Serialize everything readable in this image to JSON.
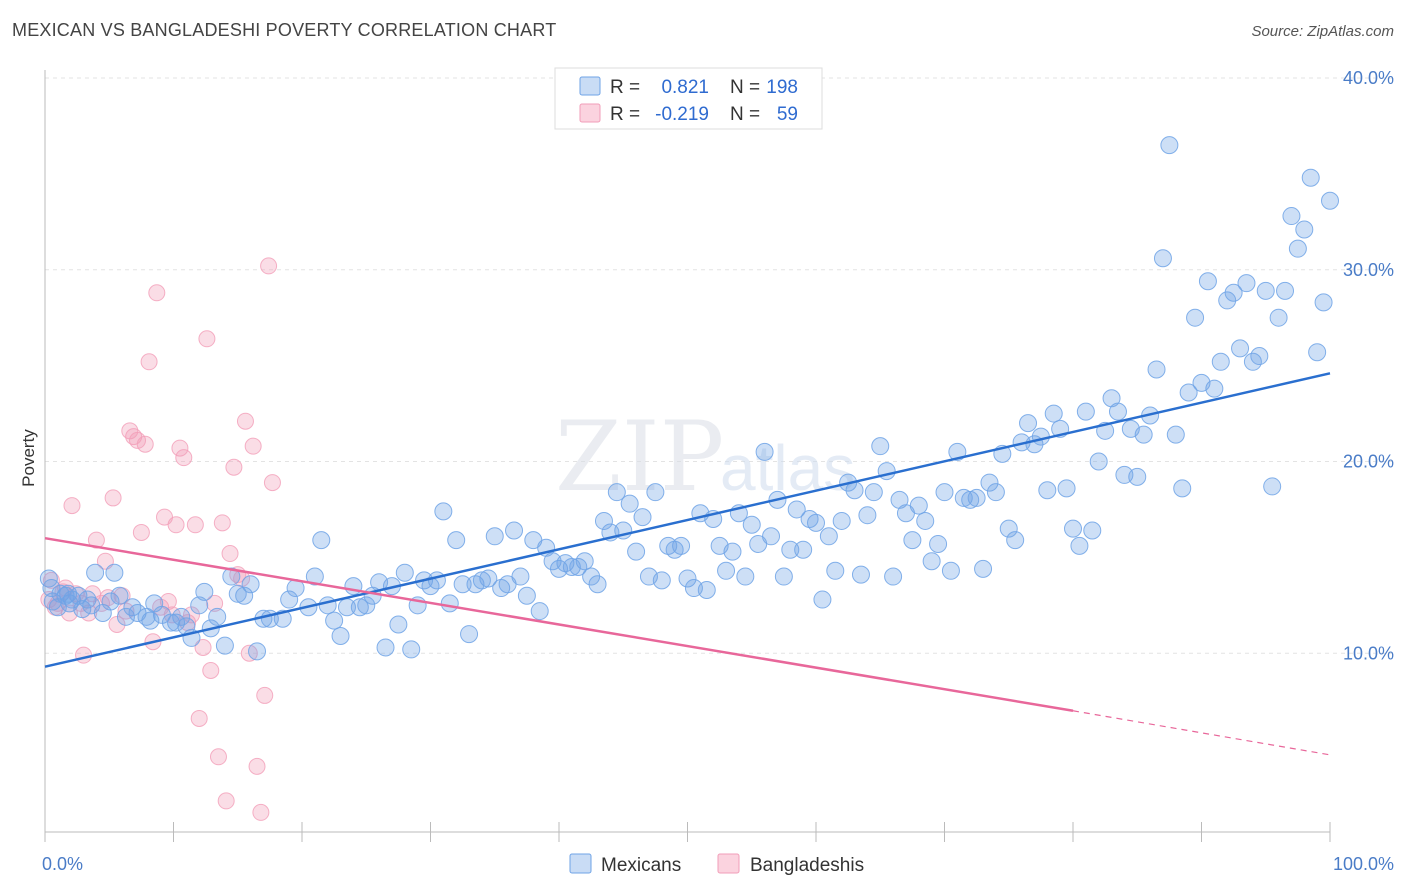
{
  "header": {
    "title": "MEXICAN VS BANGLADESHI POVERTY CORRELATION CHART",
    "source": "Source: ZipAtlas.com"
  },
  "legend": {
    "r_label": "R =",
    "n_label": "N =",
    "rows": [
      {
        "r": "0.821",
        "n": "198",
        "color": "#6fa3e6"
      },
      {
        "r": "-0.219",
        "n": "59",
        "color": "#f29db8"
      }
    ]
  },
  "watermark": {
    "zip": "ZIP",
    "atlas": "atlas"
  },
  "bottom_legend": [
    {
      "label": "Mexicans",
      "color": "#6fa3e6"
    },
    {
      "label": "Bangladeshis",
      "color": "#f29db8"
    }
  ],
  "chart_data": {
    "type": "scatter",
    "title": "MEXICAN VS BANGLADESHI POVERTY CORRELATION CHART",
    "xlabel": "",
    "ylabel": "Poverty",
    "xlim": [
      0,
      100
    ],
    "ylim": [
      0,
      40
    ],
    "x_tick_labels": [
      "0.0%",
      "100.0%"
    ],
    "y_ticks": [
      10,
      20,
      30,
      40
    ],
    "y_tick_labels": [
      "10.0%",
      "20.0%",
      "30.0%",
      "40.0%"
    ],
    "grid": true,
    "legend_position": "top-center",
    "series": [
      {
        "name": "Mexicans",
        "color": "#6fa3e6",
        "line_color": "#2a6fcf",
        "r": 0.821,
        "n": 198,
        "trend": {
          "x0": 0,
          "y0": 9.3,
          "x1": 100,
          "y1": 24.6
        },
        "points": [
          [
            0.3,
            13.9
          ],
          [
            0.5,
            13.4
          ],
          [
            0.6,
            12.7
          ],
          [
            1.0,
            12.4
          ],
          [
            1.2,
            13.1
          ],
          [
            1.6,
            13.0
          ],
          [
            1.9,
            12.6
          ],
          [
            2.1,
            12.8
          ],
          [
            2.6,
            13.0
          ],
          [
            2.9,
            12.3
          ],
          [
            3.3,
            12.8
          ],
          [
            3.6,
            12.5
          ],
          [
            3.9,
            14.2
          ],
          [
            4.5,
            12.1
          ],
          [
            5.1,
            12.7
          ],
          [
            5.4,
            14.2
          ],
          [
            5.8,
            13.0
          ],
          [
            6.3,
            11.9
          ],
          [
            6.8,
            12.4
          ],
          [
            7.2,
            12.1
          ],
          [
            7.9,
            11.9
          ],
          [
            8.2,
            11.7
          ],
          [
            8.5,
            12.6
          ],
          [
            9.1,
            12.0
          ],
          [
            9.8,
            11.6
          ],
          [
            10.2,
            11.6
          ],
          [
            10.6,
            11.9
          ],
          [
            11.0,
            11.4
          ],
          [
            11.4,
            10.8
          ],
          [
            12.0,
            12.5
          ],
          [
            12.4,
            13.2
          ],
          [
            12.9,
            11.3
          ],
          [
            13.4,
            11.9
          ],
          [
            14.0,
            10.4
          ],
          [
            14.5,
            14.0
          ],
          [
            15.0,
            13.1
          ],
          [
            15.5,
            13.0
          ],
          [
            16.0,
            13.6
          ],
          [
            16.5,
            10.1
          ],
          [
            17.0,
            11.8
          ],
          [
            17.5,
            11.8
          ],
          [
            18.5,
            11.8
          ],
          [
            19.0,
            12.8
          ],
          [
            19.5,
            13.4
          ],
          [
            20.5,
            12.4
          ],
          [
            21.0,
            14.0
          ],
          [
            21.5,
            15.9
          ],
          [
            22.0,
            12.5
          ],
          [
            22.5,
            11.7
          ],
          [
            23.0,
            10.9
          ],
          [
            23.5,
            12.4
          ],
          [
            24.0,
            13.5
          ],
          [
            24.5,
            12.4
          ],
          [
            25.0,
            12.5
          ],
          [
            25.5,
            13.0
          ],
          [
            26.0,
            13.7
          ],
          [
            26.5,
            10.3
          ],
          [
            27.0,
            13.5
          ],
          [
            27.5,
            11.5
          ],
          [
            28.0,
            14.2
          ],
          [
            28.5,
            10.2
          ],
          [
            29.0,
            12.5
          ],
          [
            29.5,
            13.8
          ],
          [
            30.0,
            13.5
          ],
          [
            30.5,
            13.8
          ],
          [
            31.0,
            17.4
          ],
          [
            31.5,
            12.6
          ],
          [
            32.0,
            15.9
          ],
          [
            32.5,
            13.6
          ],
          [
            33.0,
            11.0
          ],
          [
            33.5,
            13.6
          ],
          [
            34.0,
            13.8
          ],
          [
            34.5,
            13.9
          ],
          [
            35.0,
            16.1
          ],
          [
            35.5,
            13.4
          ],
          [
            36.0,
            13.6
          ],
          [
            36.5,
            16.4
          ],
          [
            37.0,
            14.0
          ],
          [
            37.5,
            13.0
          ],
          [
            38.0,
            15.9
          ],
          [
            38.5,
            12.2
          ],
          [
            39.0,
            15.5
          ],
          [
            39.5,
            14.8
          ],
          [
            40.0,
            14.4
          ],
          [
            40.5,
            14.7
          ],
          [
            41.0,
            14.5
          ],
          [
            41.5,
            14.5
          ],
          [
            42.0,
            14.8
          ],
          [
            42.5,
            14.0
          ],
          [
            43.0,
            13.6
          ],
          [
            43.5,
            16.9
          ],
          [
            44.0,
            16.3
          ],
          [
            44.5,
            18.4
          ],
          [
            45.0,
            16.4
          ],
          [
            45.5,
            17.8
          ],
          [
            46.0,
            15.3
          ],
          [
            46.5,
            17.1
          ],
          [
            47.0,
            14.0
          ],
          [
            47.5,
            18.4
          ],
          [
            48.0,
            13.8
          ],
          [
            48.5,
            15.6
          ],
          [
            49.0,
            15.4
          ],
          [
            49.5,
            15.6
          ],
          [
            50.0,
            13.9
          ],
          [
            50.5,
            13.4
          ],
          [
            51.0,
            17.3
          ],
          [
            51.5,
            13.3
          ],
          [
            52.0,
            17.0
          ],
          [
            52.5,
            15.6
          ],
          [
            53.0,
            14.3
          ],
          [
            53.5,
            15.3
          ],
          [
            54.0,
            17.3
          ],
          [
            54.5,
            14.0
          ],
          [
            55.0,
            16.7
          ],
          [
            55.5,
            15.7
          ],
          [
            56.0,
            20.5
          ],
          [
            56.5,
            16.1
          ],
          [
            57.0,
            18.0
          ],
          [
            57.5,
            14.0
          ],
          [
            58.0,
            15.4
          ],
          [
            58.5,
            17.5
          ],
          [
            59.0,
            15.4
          ],
          [
            59.5,
            17.0
          ],
          [
            60.0,
            16.8
          ],
          [
            60.5,
            12.8
          ],
          [
            61.0,
            16.1
          ],
          [
            61.5,
            14.3
          ],
          [
            62.0,
            16.9
          ],
          [
            62.5,
            18.9
          ],
          [
            63.0,
            18.5
          ],
          [
            63.5,
            14.1
          ],
          [
            64.0,
            17.2
          ],
          [
            64.5,
            18.4
          ],
          [
            65.0,
            20.8
          ],
          [
            65.5,
            19.5
          ],
          [
            66.0,
            14.0
          ],
          [
            66.5,
            18.0
          ],
          [
            67.0,
            17.3
          ],
          [
            67.5,
            15.9
          ],
          [
            68.0,
            17.7
          ],
          [
            68.5,
            16.9
          ],
          [
            69.0,
            14.8
          ],
          [
            69.5,
            15.7
          ],
          [
            70.0,
            18.4
          ],
          [
            70.5,
            14.3
          ],
          [
            71.0,
            20.5
          ],
          [
            71.5,
            18.1
          ],
          [
            72.0,
            18.0
          ],
          [
            72.5,
            18.1
          ],
          [
            73.0,
            14.4
          ],
          [
            73.5,
            18.9
          ],
          [
            74.0,
            18.4
          ],
          [
            74.5,
            20.4
          ],
          [
            75.0,
            16.5
          ],
          [
            75.5,
            15.9
          ],
          [
            76.0,
            21.0
          ],
          [
            76.5,
            22.0
          ],
          [
            77.0,
            20.9
          ],
          [
            77.5,
            21.3
          ],
          [
            78.0,
            18.5
          ],
          [
            78.5,
            22.5
          ],
          [
            79.0,
            21.7
          ],
          [
            79.5,
            18.6
          ],
          [
            80.0,
            16.5
          ],
          [
            80.5,
            15.6
          ],
          [
            81.0,
            22.6
          ],
          [
            81.5,
            16.4
          ],
          [
            82.0,
            20.0
          ],
          [
            82.5,
            21.6
          ],
          [
            83.0,
            23.3
          ],
          [
            83.5,
            22.6
          ],
          [
            84.0,
            19.3
          ],
          [
            84.5,
            21.7
          ],
          [
            85.0,
            19.2
          ],
          [
            85.5,
            21.4
          ],
          [
            86.0,
            22.4
          ],
          [
            86.5,
            24.8
          ],
          [
            87.0,
            30.6
          ],
          [
            87.5,
            36.5
          ],
          [
            88.0,
            21.4
          ],
          [
            88.5,
            18.6
          ],
          [
            89.0,
            23.6
          ],
          [
            89.5,
            27.5
          ],
          [
            90.0,
            24.1
          ],
          [
            90.5,
            29.4
          ],
          [
            91.0,
            23.8
          ],
          [
            91.5,
            25.2
          ],
          [
            92.0,
            28.4
          ],
          [
            92.5,
            28.8
          ],
          [
            93.0,
            25.9
          ],
          [
            93.5,
            29.3
          ],
          [
            94.0,
            25.2
          ],
          [
            94.5,
            25.5
          ],
          [
            95.0,
            28.9
          ],
          [
            95.5,
            18.7
          ],
          [
            96.0,
            27.5
          ],
          [
            96.5,
            28.9
          ],
          [
            97.0,
            32.8
          ],
          [
            97.5,
            31.1
          ],
          [
            98.0,
            32.1
          ],
          [
            98.5,
            34.8
          ],
          [
            99.0,
            25.7
          ],
          [
            99.5,
            28.3
          ],
          [
            100.0,
            33.6
          ],
          [
            1.8,
            13.1
          ]
        ]
      },
      {
        "name": "Bangladeshis",
        "color": "#f29db8",
        "line_color": "#e8679a",
        "r": -0.219,
        "n": 59,
        "trend": {
          "x0": 0,
          "y0": 16.0,
          "x1": 80,
          "y1": 7.0,
          "dash_x1": 100,
          "dash_y1": 4.7
        },
        "points": [
          [
            0.3,
            12.8
          ],
          [
            0.5,
            13.8
          ],
          [
            0.8,
            12.4
          ],
          [
            1.0,
            12.6
          ],
          [
            1.4,
            13.2
          ],
          [
            1.6,
            13.4
          ],
          [
            1.9,
            12.1
          ],
          [
            2.1,
            17.7
          ],
          [
            2.4,
            13.1
          ],
          [
            2.8,
            12.6
          ],
          [
            3.0,
            9.9
          ],
          [
            3.4,
            12.1
          ],
          [
            3.7,
            13.1
          ],
          [
            4.0,
            15.9
          ],
          [
            4.4,
            12.6
          ],
          [
            4.7,
            14.8
          ],
          [
            4.9,
            12.9
          ],
          [
            5.3,
            18.1
          ],
          [
            5.6,
            11.5
          ],
          [
            6.0,
            13.0
          ],
          [
            6.3,
            12.2
          ],
          [
            6.6,
            21.6
          ],
          [
            6.9,
            21.3
          ],
          [
            7.2,
            21.1
          ],
          [
            7.5,
            16.3
          ],
          [
            7.8,
            20.9
          ],
          [
            8.1,
            25.2
          ],
          [
            8.4,
            10.6
          ],
          [
            8.7,
            28.8
          ],
          [
            9.0,
            12.4
          ],
          [
            9.3,
            17.1
          ],
          [
            9.6,
            12.7
          ],
          [
            9.9,
            12.0
          ],
          [
            10.2,
            16.7
          ],
          [
            10.5,
            20.7
          ],
          [
            10.8,
            20.2
          ],
          [
            11.1,
            11.6
          ],
          [
            11.4,
            12.0
          ],
          [
            11.7,
            16.7
          ],
          [
            12.0,
            6.6
          ],
          [
            12.3,
            10.3
          ],
          [
            12.6,
            26.4
          ],
          [
            12.9,
            9.1
          ],
          [
            13.2,
            12.6
          ],
          [
            13.5,
            4.6
          ],
          [
            13.8,
            16.8
          ],
          [
            14.1,
            2.3
          ],
          [
            14.4,
            15.2
          ],
          [
            14.7,
            19.7
          ],
          [
            15.0,
            14.1
          ],
          [
            15.3,
            13.9
          ],
          [
            15.6,
            22.1
          ],
          [
            15.9,
            10.0
          ],
          [
            16.2,
            20.8
          ],
          [
            16.5,
            4.1
          ],
          [
            16.8,
            1.7
          ],
          [
            17.1,
            7.8
          ],
          [
            17.4,
            30.2
          ],
          [
            17.7,
            18.9
          ]
        ]
      }
    ]
  }
}
